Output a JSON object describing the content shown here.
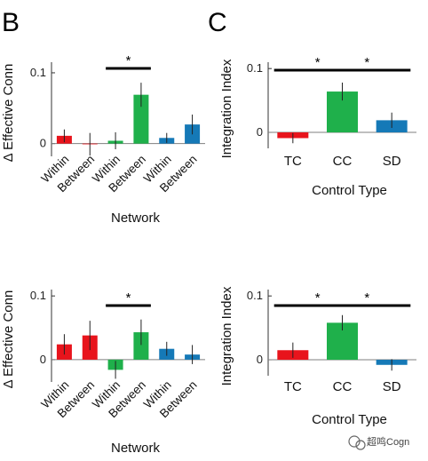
{
  "colors": {
    "red": "#e8141c",
    "green": "#1fb04b",
    "blue": "#1579b7",
    "baseline": "#7f7f7f"
  },
  "panel_letters": [
    "B",
    "C"
  ],
  "watermark": {
    "text": "超鸣Cogn",
    "icon": "wechat-icon"
  },
  "chart_data": [
    {
      "id": "B_top",
      "type": "bar",
      "ylabel": "Δ Effective Conn",
      "xlabel": "Network",
      "ylim": [
        -0.018,
        0.115
      ],
      "yticks": [
        0,
        0.1
      ],
      "ytick_labels": [
        "0",
        "0.1"
      ],
      "categories": [
        "Within",
        "Between",
        "Within",
        "Between",
        "Within",
        "Between"
      ],
      "values": [
        0.011,
        -0.001,
        0.004,
        0.069,
        0.008,
        0.027
      ],
      "errors": [
        0.009,
        0.016,
        0.012,
        0.017,
        0.007,
        0.014
      ],
      "bar_colors": [
        "red",
        "red",
        "green",
        "green",
        "blue",
        "blue"
      ],
      "significance": [
        {
          "from": 2,
          "to": 3,
          "label": "*"
        }
      ]
    },
    {
      "id": "C_top",
      "type": "bar",
      "ylabel": "Integration Index",
      "xlabel": "Control Type",
      "ylim": [
        -0.025,
        0.11
      ],
      "yticks": [
        0,
        0.1
      ],
      "ytick_labels": [
        "0",
        "0.1"
      ],
      "categories": [
        "TC",
        "CC",
        "SD"
      ],
      "values": [
        -0.009,
        0.064,
        0.019
      ],
      "errors": [
        0.008,
        0.014,
        0.012
      ],
      "bar_colors": [
        "red",
        "green",
        "blue"
      ],
      "significance": [
        {
          "from": 0,
          "to": 1,
          "label": "*"
        },
        {
          "from": 1,
          "to": 2,
          "label": "*"
        }
      ]
    },
    {
      "id": "B_bottom",
      "type": "bar",
      "ylabel": "Δ Effective Conn",
      "xlabel": "Network",
      "ylim": [
        -0.035,
        0.11
      ],
      "yticks": [
        0,
        0.1
      ],
      "ytick_labels": [
        "0",
        "0.1"
      ],
      "categories": [
        "Within",
        "Between",
        "Within",
        "Between",
        "Within",
        "Between"
      ],
      "values": [
        0.024,
        0.038,
        -0.016,
        0.043,
        0.017,
        0.008
      ],
      "errors": [
        0.016,
        0.023,
        0.014,
        0.02,
        0.011,
        0.015
      ],
      "bar_colors": [
        "red",
        "red",
        "green",
        "green",
        "blue",
        "blue"
      ],
      "significance": [
        {
          "from": 2,
          "to": 3,
          "label": "*"
        }
      ]
    },
    {
      "id": "C_bottom",
      "type": "bar",
      "ylabel": "Integration Index",
      "xlabel": "Control Type",
      "ylim": [
        -0.025,
        0.11
      ],
      "yticks": [
        0,
        0.1
      ],
      "ytick_labels": [
        "0",
        "0.1"
      ],
      "categories": [
        "TC",
        "CC",
        "SD"
      ],
      "values": [
        0.015,
        0.058,
        -0.008
      ],
      "errors": [
        0.012,
        0.012,
        0.009
      ],
      "bar_colors": [
        "red",
        "green",
        "blue"
      ],
      "significance": [
        {
          "from": 0,
          "to": 1,
          "label": "*"
        },
        {
          "from": 1,
          "to": 2,
          "label": "*"
        }
      ]
    }
  ]
}
